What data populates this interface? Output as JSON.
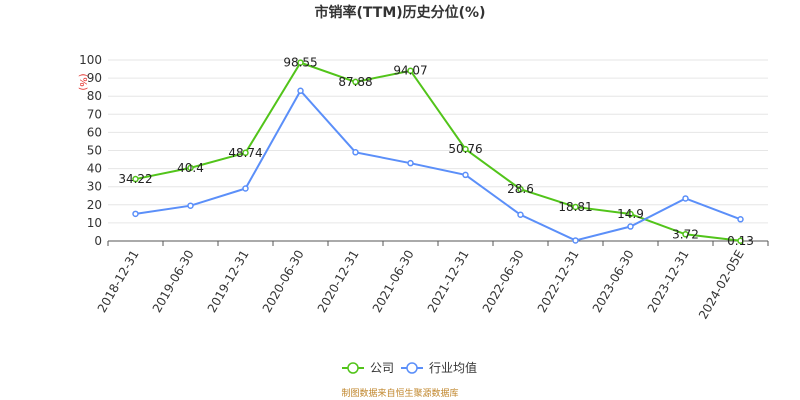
{
  "chart_data": {
    "type": "line",
    "title": "市销率(TTM)历史分位(%)",
    "y_unit": "(%)",
    "ylim": [
      0,
      100
    ],
    "y_ticks": [
      0,
      10,
      20,
      30,
      40,
      50,
      60,
      70,
      80,
      90,
      100
    ],
    "grid": true,
    "legend_position": "bottom-center",
    "categories": [
      "2018-12-31",
      "2019-06-30",
      "2019-12-31",
      "2020-06-30",
      "2020-12-31",
      "2021-06-30",
      "2021-12-31",
      "2022-06-30",
      "2022-12-31",
      "2023-06-30",
      "2023-12-31",
      "2024-02-05E"
    ],
    "series": [
      {
        "name": "公司",
        "color": "#52c41a",
        "values": [
          34.22,
          40.4,
          48.74,
          98.55,
          87.88,
          94.07,
          50.76,
          28.6,
          18.81,
          14.9,
          3.72,
          0.13
        ],
        "labels": [
          "34.22",
          "40.4",
          "48.74",
          "98.55",
          "87.88",
          "94.07",
          "50.76",
          "28.6",
          "18.81",
          "14.9",
          "3.72",
          "0.13"
        ]
      },
      {
        "name": "行业均值",
        "color": "#5b8ff9",
        "values": [
          15,
          19.5,
          29,
          83,
          49,
          43,
          36.5,
          14.5,
          0.3,
          8,
          23.5,
          12
        ]
      }
    ]
  },
  "footer": {
    "source": "制图数据来自恒生聚源数据库"
  }
}
